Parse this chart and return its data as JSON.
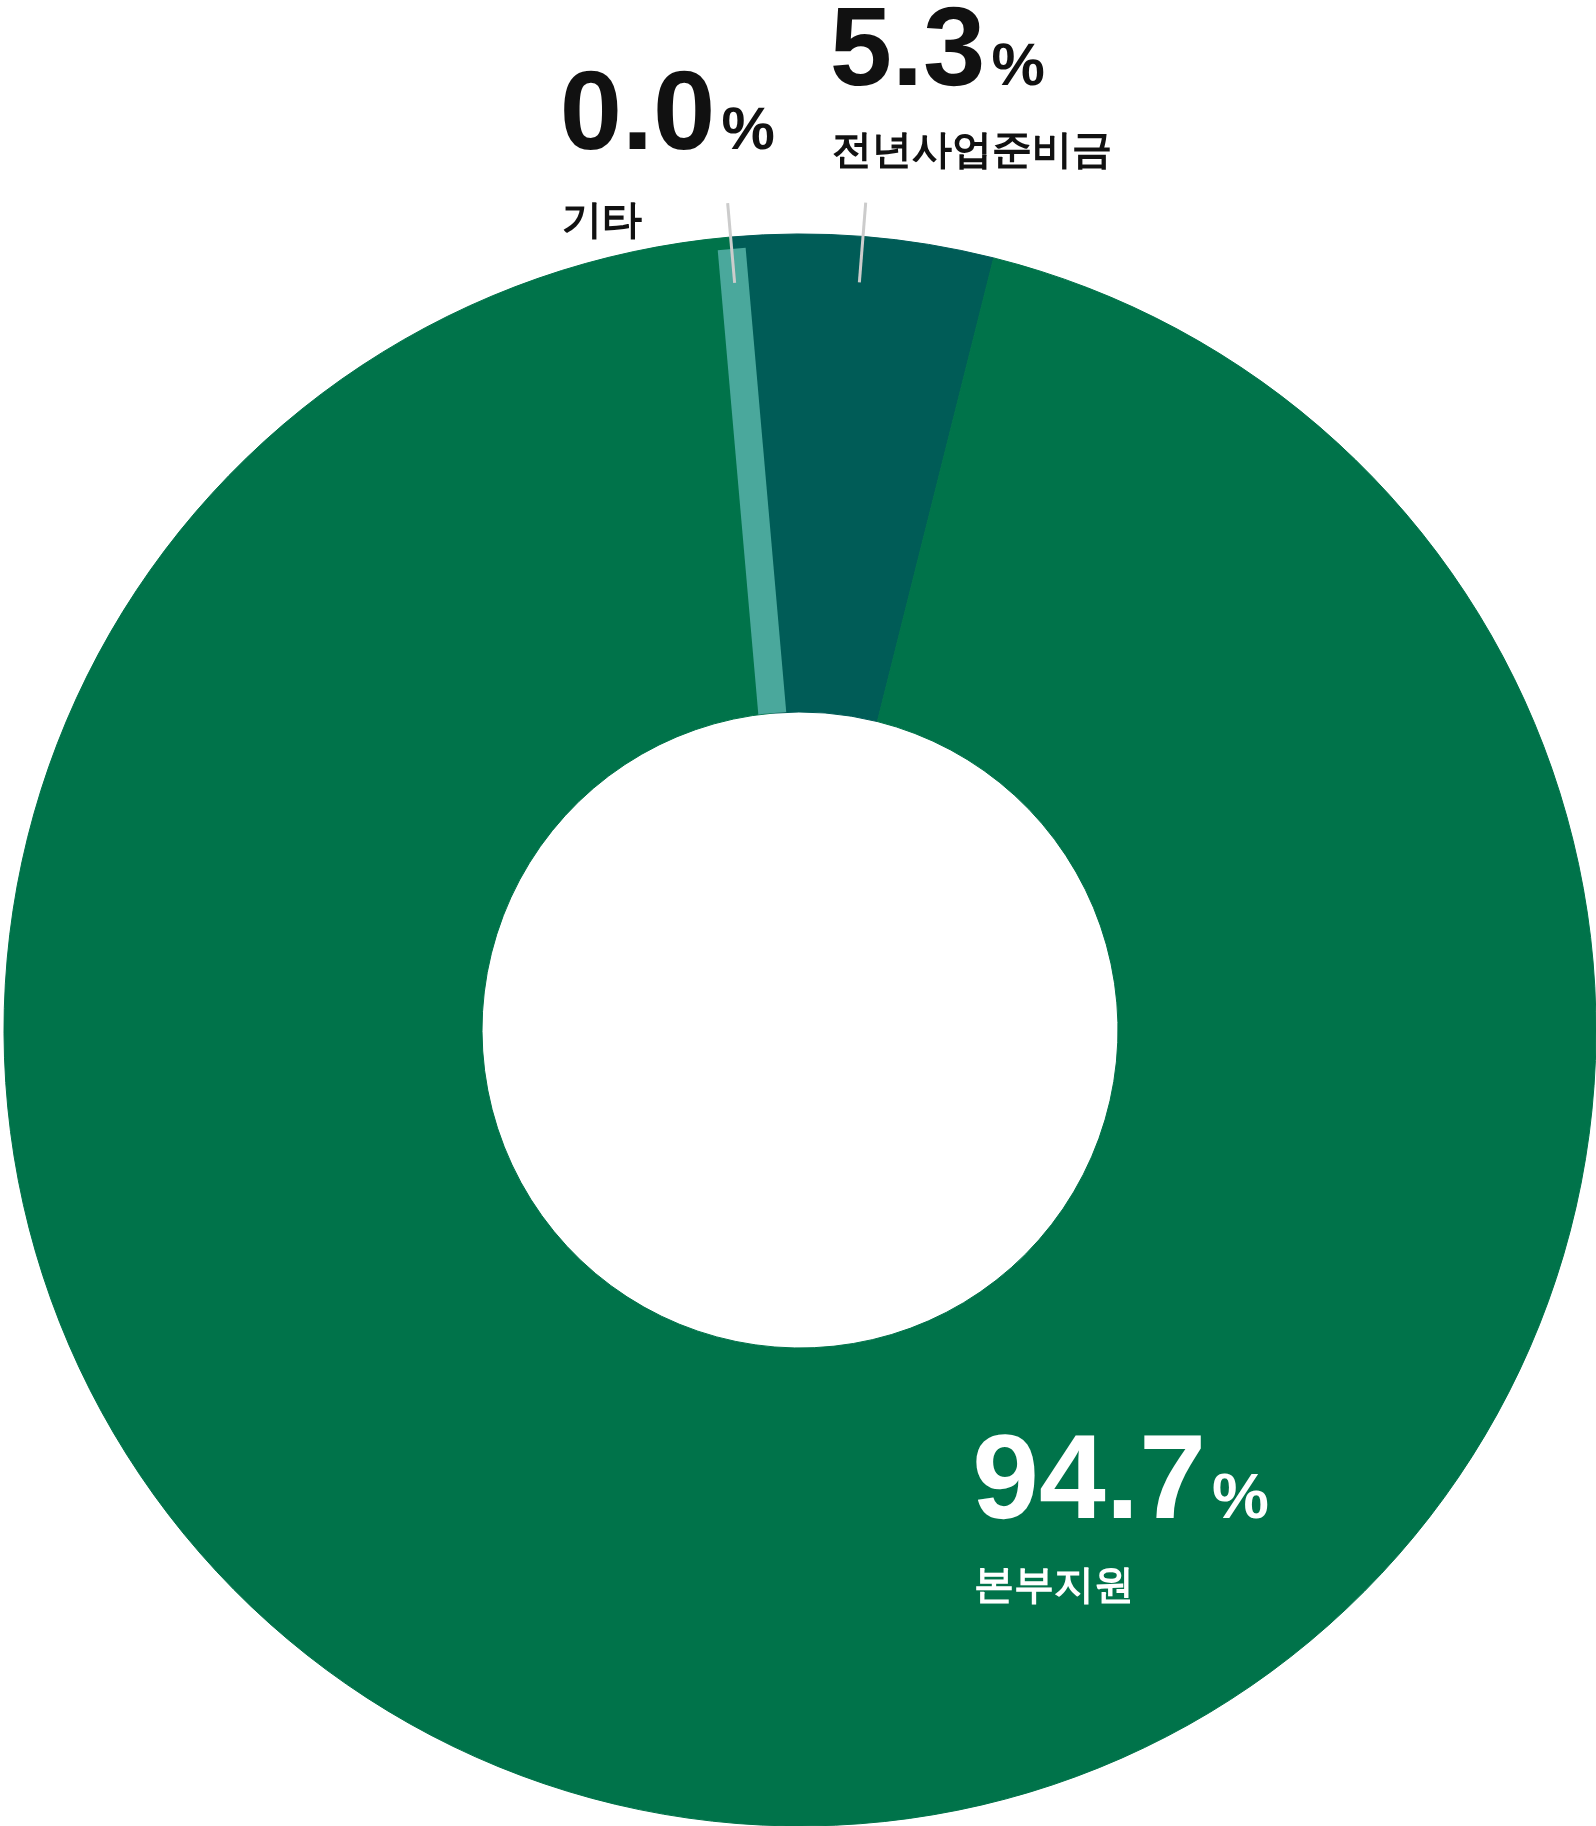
{
  "chart_data": {
    "type": "donut",
    "categories": [
      "기타",
      "전년사업준비금",
      "본부지원"
    ],
    "values": [
      0.0,
      5.3,
      94.7
    ],
    "colors": [
      "#4aa89c",
      "#005c57",
      "#00734a"
    ],
    "value_labels": [
      "0.0%",
      "5.3%",
      "94.7%"
    ]
  }
}
